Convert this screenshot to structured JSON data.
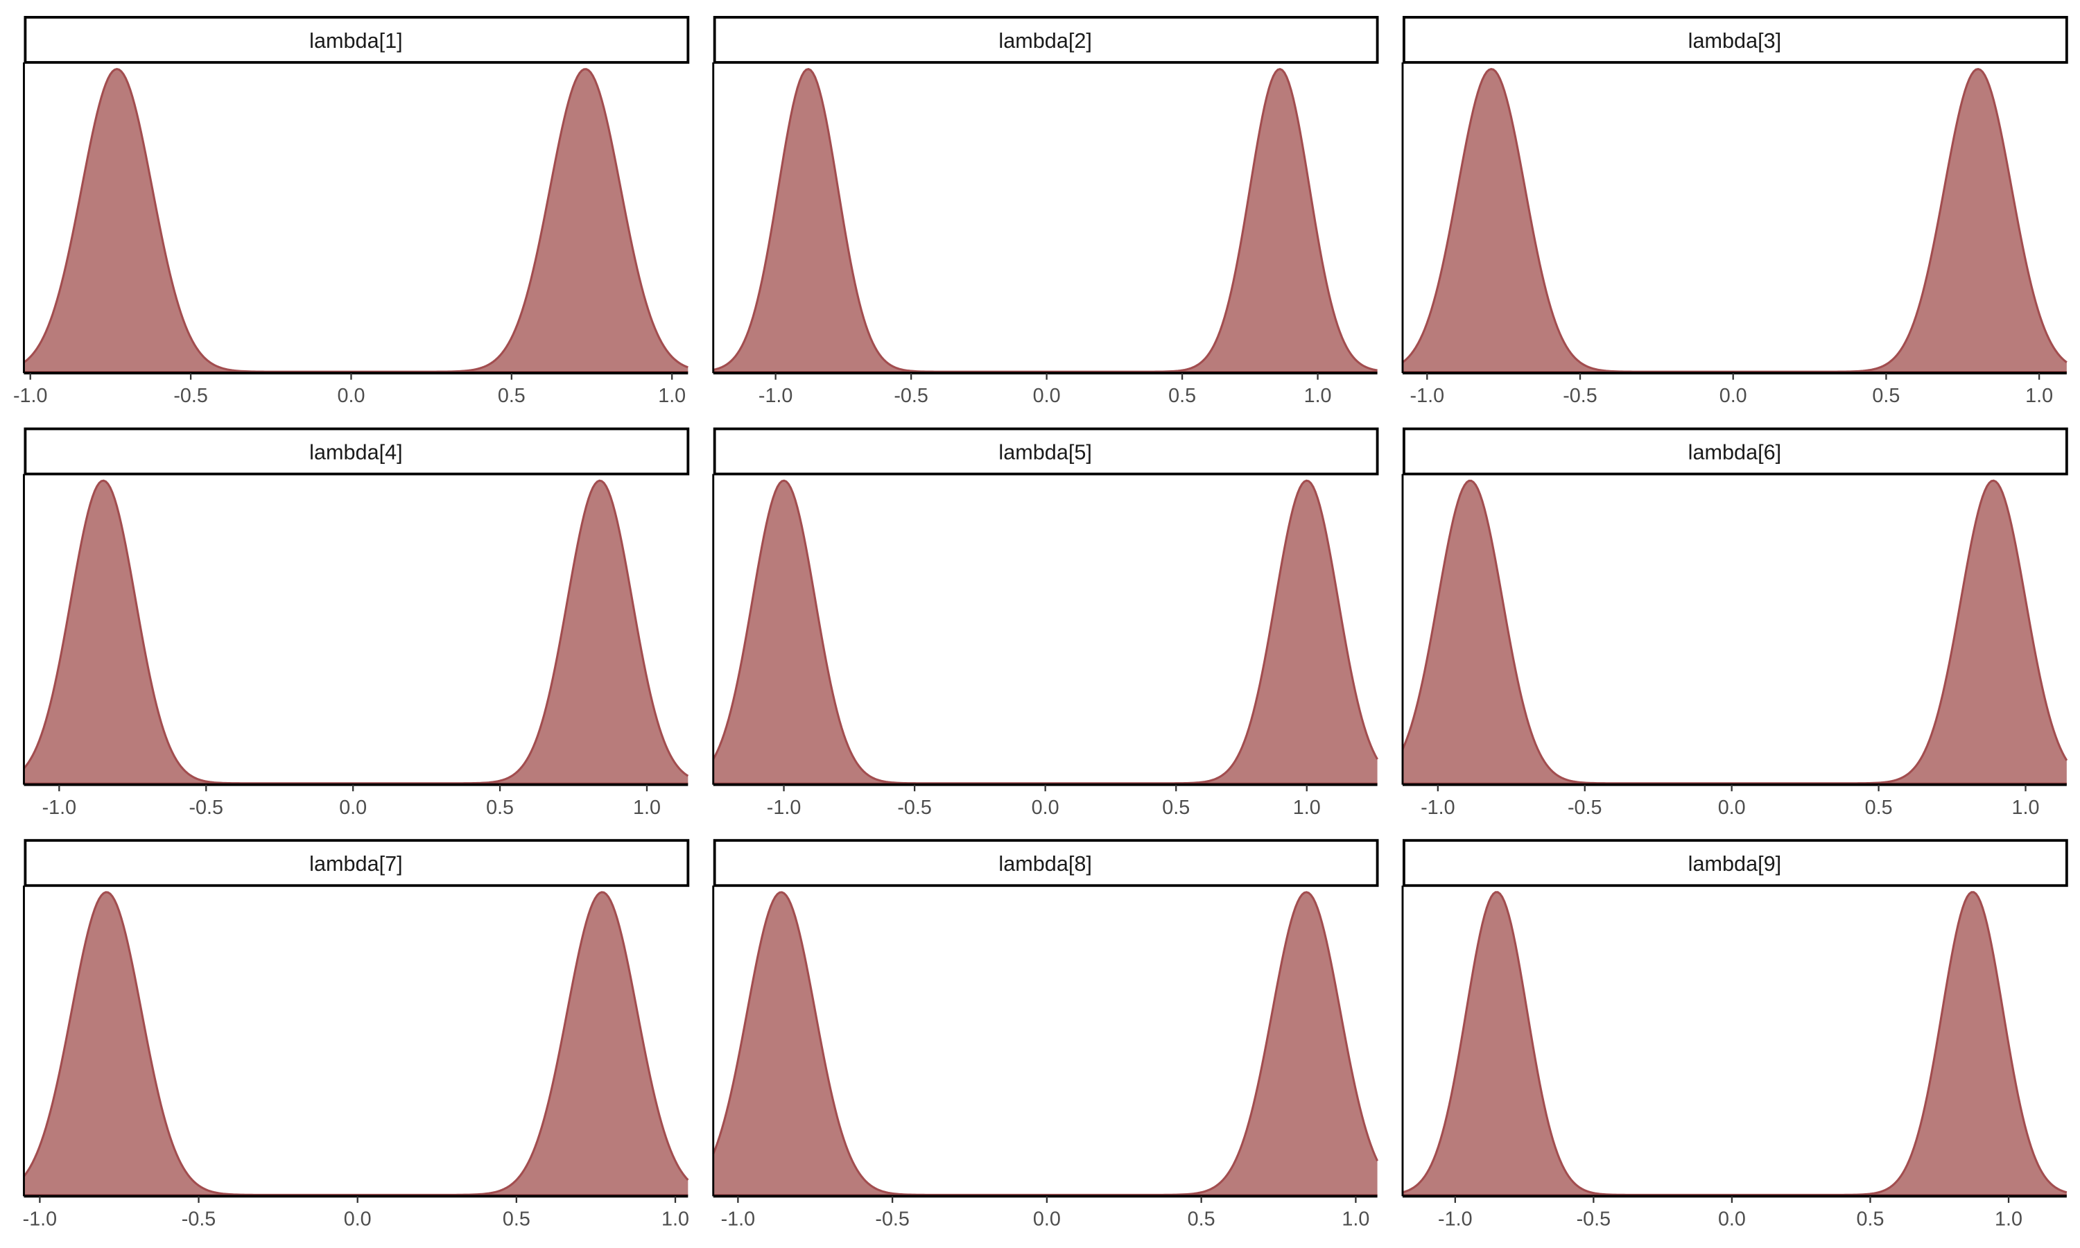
{
  "chart_data": {
    "type": "area",
    "layout": "3x3 facet grid",
    "colors": {
      "fill": "#b87c7b",
      "line": "#a24d4f",
      "axis": "#000000",
      "tick_text": "#4d4d4d"
    },
    "grid": false,
    "y_axis_shown": false,
    "panels": [
      {
        "title": "lambda[1]",
        "xlim": [
          -1.02,
          1.05
        ],
        "ticks": [
          "-1.0",
          "-0.5",
          "0.0",
          "0.5",
          "1.0"
        ],
        "modes": [
          -0.73,
          0.73
        ],
        "sd": 0.11
      },
      {
        "title": "lambda[2]",
        "xlim": [
          -1.23,
          1.22
        ],
        "ticks": [
          "-1.0",
          "-0.5",
          "0.0",
          "0.5",
          "1.0"
        ],
        "modes": [
          -0.88,
          0.86
        ],
        "sd": 0.11
      },
      {
        "title": "lambda[3]",
        "xlim": [
          -1.08,
          1.09
        ],
        "ticks": [
          "-1.0",
          "-0.5",
          "0.0",
          "0.5",
          "1.0"
        ],
        "modes": [
          -0.79,
          0.8
        ],
        "sd": 0.11
      },
      {
        "title": "lambda[4]",
        "xlim": [
          -1.12,
          1.14
        ],
        "ticks": [
          "-1.0",
          "-0.5",
          "0.0",
          "0.5",
          "1.0"
        ],
        "modes": [
          -0.85,
          0.84
        ],
        "sd": 0.11
      },
      {
        "title": "lambda[5]",
        "xlim": [
          -1.27,
          1.27
        ],
        "ticks": [
          "-1.0",
          "-0.5",
          "0.0",
          "0.5",
          "1.0"
        ],
        "modes": [
          -1.0,
          1.0
        ],
        "sd": 0.12
      },
      {
        "title": "lambda[6]",
        "xlim": [
          -1.12,
          1.14
        ],
        "ticks": [
          "-1.0",
          "-0.5",
          "0.0",
          "0.5",
          "1.0"
        ],
        "modes": [
          -0.89,
          0.89
        ],
        "sd": 0.11
      },
      {
        "title": "lambda[7]",
        "xlim": [
          -1.05,
          1.04
        ],
        "ticks": [
          "-1.0",
          "-0.5",
          "0.0",
          "0.5",
          "1.0"
        ],
        "modes": [
          -0.79,
          0.77
        ],
        "sd": 0.11
      },
      {
        "title": "lambda[8]",
        "xlim": [
          -1.08,
          1.07
        ],
        "ticks": [
          "-1.0",
          "-0.5",
          "0.0",
          "0.5",
          "1.0"
        ],
        "modes": [
          -0.86,
          0.84
        ],
        "sd": 0.11
      },
      {
        "title": "lambda[9]",
        "xlim": [
          -1.19,
          1.21
        ],
        "ticks": [
          "-1.0",
          "-0.5",
          "0.0",
          "0.5",
          "1.0"
        ],
        "modes": [
          -0.85,
          0.87
        ],
        "sd": 0.11
      }
    ]
  }
}
